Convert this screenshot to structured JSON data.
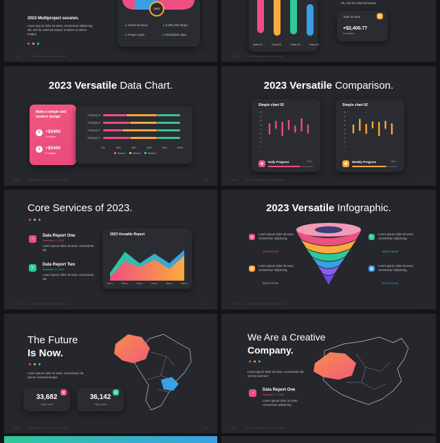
{
  "colors": {
    "pink": "#ee4f82",
    "orange": "#fbaa3c",
    "green": "#2ec99a",
    "blue": "#3aa0e6",
    "purple": "#8a5cf6",
    "yellow": "#f8c64a"
  },
  "footer": {
    "left1": "2023",
    "left2": "M Multiproject presentation",
    "right": "01"
  },
  "s1": {
    "title": "2023 Multiproject session.",
    "body": "Lorem ipsum dolor sit amet, consectetur adipiscing elit, sed do eiusmod tempor ut labore et dolore magna.",
    "center_label": "2023",
    "bullets": [
      "Smart decision",
      "5,205,460 target",
      "Proper ways",
      "Worldwide data"
    ]
  },
  "s2": {
    "bar_labels": [
      "Data 01",
      "Data 02",
      "Data 03",
      "Data 04"
    ],
    "top_text": "elit, sed do eiusmod tempor.",
    "income_label": "Total income",
    "income_value": "+$2,400.77",
    "income_sub": "Profitable",
    "income_icon": "chart-icon"
  },
  "s3": {
    "title_bold": "2023 Versatile",
    "title_light": " Data Chart.",
    "card_title": "Make a simple and modern design",
    "stat1": "+$3400",
    "stat1_sub": "Profitable",
    "stat2": "+$5400",
    "stat2_sub": "Profitable"
  },
  "chart_data": [
    {
      "type": "bar",
      "orientation": "horizontal",
      "stacked": true,
      "categories": [
        "Category 4",
        "Category 3",
        "Category 2",
        "Category 1"
      ],
      "series": [
        {
          "name": "Series 1",
          "values": [
            30,
            35,
            25,
            35
          ]
        },
        {
          "name": "Series 2",
          "values": [
            40,
            35,
            45,
            35
          ]
        },
        {
          "name": "Series 3",
          "values": [
            30,
            30,
            30,
            30
          ]
        }
      ],
      "xticks": [
        "0%",
        "20%",
        "40%",
        "60%",
        "80%",
        "100%"
      ],
      "xlim": [
        0,
        100
      ],
      "colors": [
        "#ee4f82",
        "#fbaa3c",
        "#2ec99a"
      ]
    },
    {
      "type": "bar",
      "title": "Simple chart 02",
      "values": [
        55,
        40,
        70,
        50,
        35,
        65,
        45
      ],
      "ylim": [
        0,
        100
      ],
      "yticks": [
        "0",
        "10",
        "20",
        "30",
        "40",
        "50",
        "60",
        "70",
        "80"
      ],
      "color": "#ee4f82"
    },
    {
      "type": "bar",
      "title": "Simple chart 02",
      "values": [
        45,
        60,
        50,
        35,
        70,
        40,
        55
      ],
      "ylim": [
        0,
        100
      ],
      "yticks": [
        "0",
        "10",
        "20",
        "30",
        "40",
        "50",
        "60",
        "70",
        "80"
      ],
      "color": "#fbaa3c"
    },
    {
      "type": "area",
      "title": "2023 Versatile Report",
      "x": [
        "Data 1",
        "Data 2",
        "Data 3",
        "Data 4",
        "Data 5",
        "Data 6"
      ],
      "series": [
        {
          "name": "back",
          "values": [
            20,
            75,
            45,
            70,
            45,
            80
          ]
        },
        {
          "name": "front",
          "values": [
            10,
            50,
            35,
            55,
            30,
            65
          ]
        }
      ],
      "ylim": [
        0,
        100
      ]
    }
  ],
  "s4": {
    "pink_title": "Simple chart 02",
    "yellow_title": "Simple chart 02",
    "progress1": {
      "label": "Daily Progress",
      "value": "70%",
      "pct": 0.7
    },
    "progress2": {
      "label": "Weekly Progress",
      "value": "75%",
      "pct": 0.75
    }
  },
  "s5": {
    "title_light": "Core Services of ",
    "title_bold": "2023.",
    "items": [
      {
        "title": "Data Report One",
        "date": "December 17, 2023",
        "text": "Lorem ipsum dolor sit amet, consectetur elit."
      },
      {
        "title": "Data Report Two",
        "date": "December 17, 2023",
        "text": "Lorem ipsum dolor sit amet, consectetur elit."
      }
    ]
  },
  "s6": {
    "title_bold": "2023 Versatile",
    "title_light": " Infographic.",
    "left": [
      {
        "text": "Lorem ipsum dolor sit amet, consectetur adipiscing.",
        "value": "$165,578,000"
      },
      {
        "text": "Lorem ipsum dolor sit amet, consectetur adipiscing.",
        "value": "$405,578,000"
      }
    ],
    "right": [
      {
        "text": "Lorem ipsum dolor sit amet, consectetur adipiscing.",
        "value": "$325,578,000"
      },
      {
        "text": "Lorem ipsum dolor sit amet, consectetur adipiscing.",
        "value": "$705,578,000"
      }
    ]
  },
  "s7": {
    "line1": "The Future",
    "line2": "Is Now.",
    "text": "Lorem ipsum dolor sit amet, consectetur elit, sed do eiusmod tempor.",
    "stat1": "33,682",
    "stat1_sub": "High value",
    "stat2": "36,142",
    "stat2_sub": "High value"
  },
  "s8": {
    "title_light": "We Are a ",
    "title_bold": "Creative",
    "title_line2": "Company.",
    "text": "Lorem ipsum dolor sit amet, consectetur elit, sed do eiusmod",
    "item_title": "Data Report One",
    "item_date": "December 17, 2023",
    "item_text": "Lorem ipsum dolor sit amet, consectetur adipiscing."
  }
}
